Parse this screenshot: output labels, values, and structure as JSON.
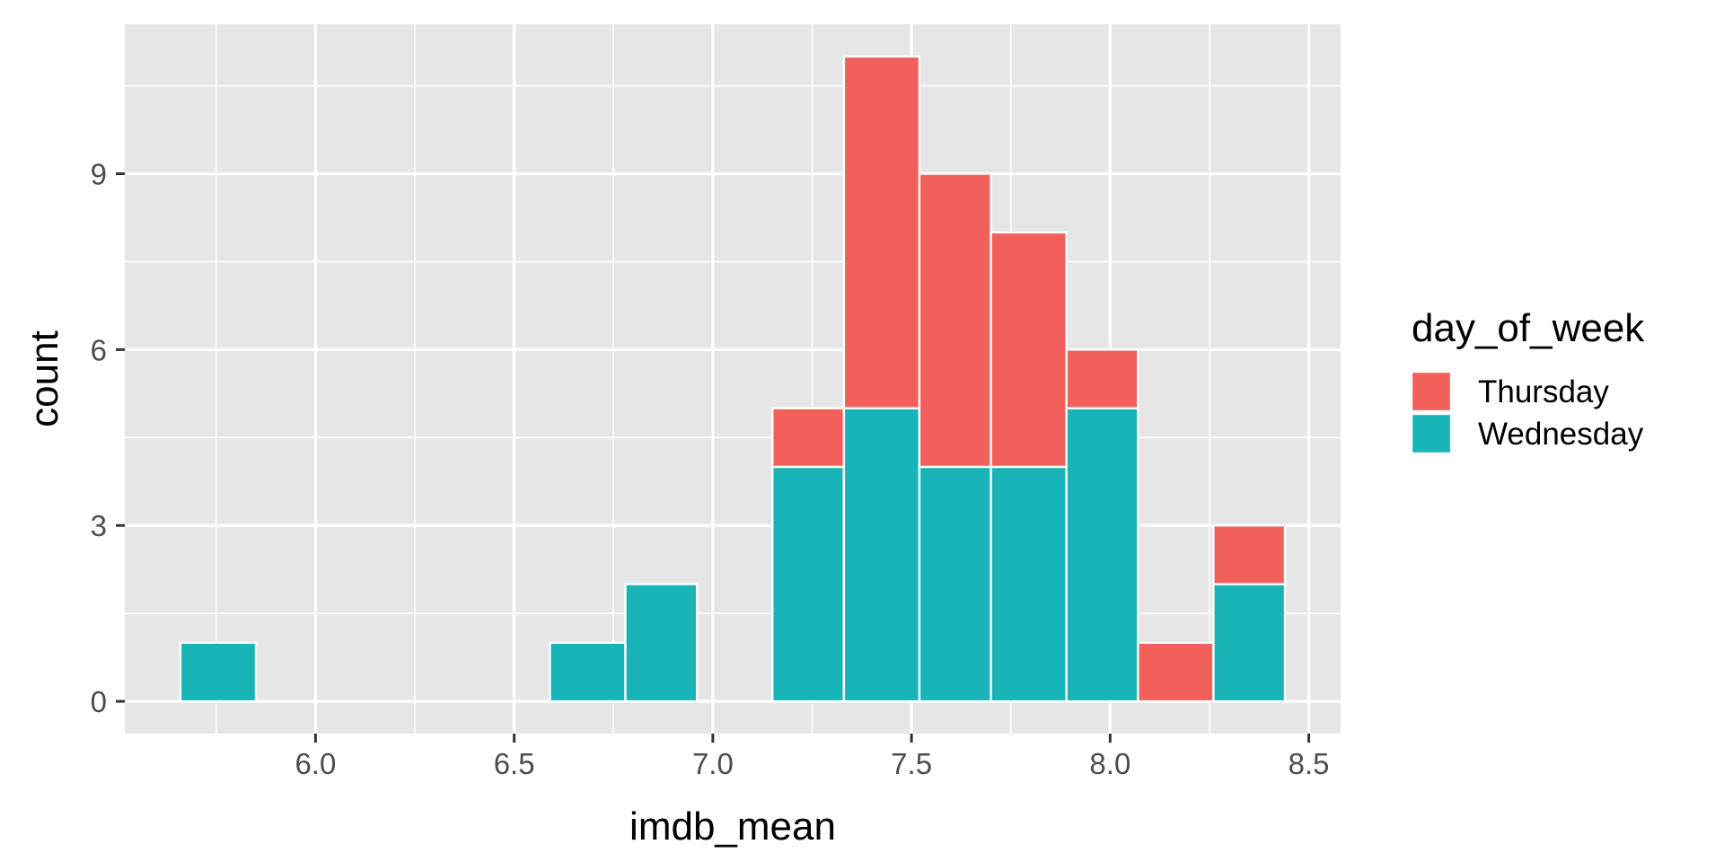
{
  "chart_data": {
    "type": "bar",
    "subtype": "stacked-histogram",
    "xlabel": "imdb_mean",
    "ylabel": "count",
    "xlim": [
      5.52,
      8.58
    ],
    "ylim": [
      -0.55,
      11.55
    ],
    "x_ticks": [
      {
        "value": 6.0,
        "label": "6.0"
      },
      {
        "value": 6.5,
        "label": "6.5"
      },
      {
        "value": 7.0,
        "label": "7.0"
      },
      {
        "value": 7.5,
        "label": "7.5"
      },
      {
        "value": 8.0,
        "label": "8.0"
      },
      {
        "value": 8.5,
        "label": "8.5"
      }
    ],
    "y_ticks": [
      {
        "value": 0,
        "label": "0"
      },
      {
        "value": 3,
        "label": "3"
      },
      {
        "value": 6,
        "label": "6"
      },
      {
        "value": 9,
        "label": "9"
      }
    ],
    "bins": [
      {
        "xmin": 5.66,
        "xmax": 5.85
      },
      {
        "xmin": 6.59,
        "xmax": 6.78
      },
      {
        "xmin": 6.78,
        "xmax": 6.96
      },
      {
        "xmin": 7.15,
        "xmax": 7.33
      },
      {
        "xmin": 7.33,
        "xmax": 7.52
      },
      {
        "xmin": 7.52,
        "xmax": 7.7
      },
      {
        "xmin": 7.7,
        "xmax": 7.89
      },
      {
        "xmin": 7.89,
        "xmax": 8.07
      },
      {
        "xmin": 8.07,
        "xmax": 8.26
      },
      {
        "xmin": 8.26,
        "xmax": 8.44
      }
    ],
    "series": [
      {
        "name": "Wednesday",
        "color": "#19B4B7",
        "values": [
          1,
          1,
          2,
          4,
          5,
          4,
          4,
          5,
          0,
          2
        ]
      },
      {
        "name": "Thursday",
        "color": "#F2605C",
        "values": [
          0,
          0,
          0,
          1,
          6,
          5,
          4,
          1,
          1,
          1
        ]
      }
    ],
    "stack_order_bottom_to_top": [
      "Wednesday",
      "Thursday"
    ],
    "legend": {
      "title": "day_of_week",
      "position": "right",
      "entries": [
        "Thursday",
        "Wednesday"
      ]
    },
    "grid": true,
    "panel_background": "#E6E6E6",
    "bar_outline": "#FFFFFF"
  }
}
